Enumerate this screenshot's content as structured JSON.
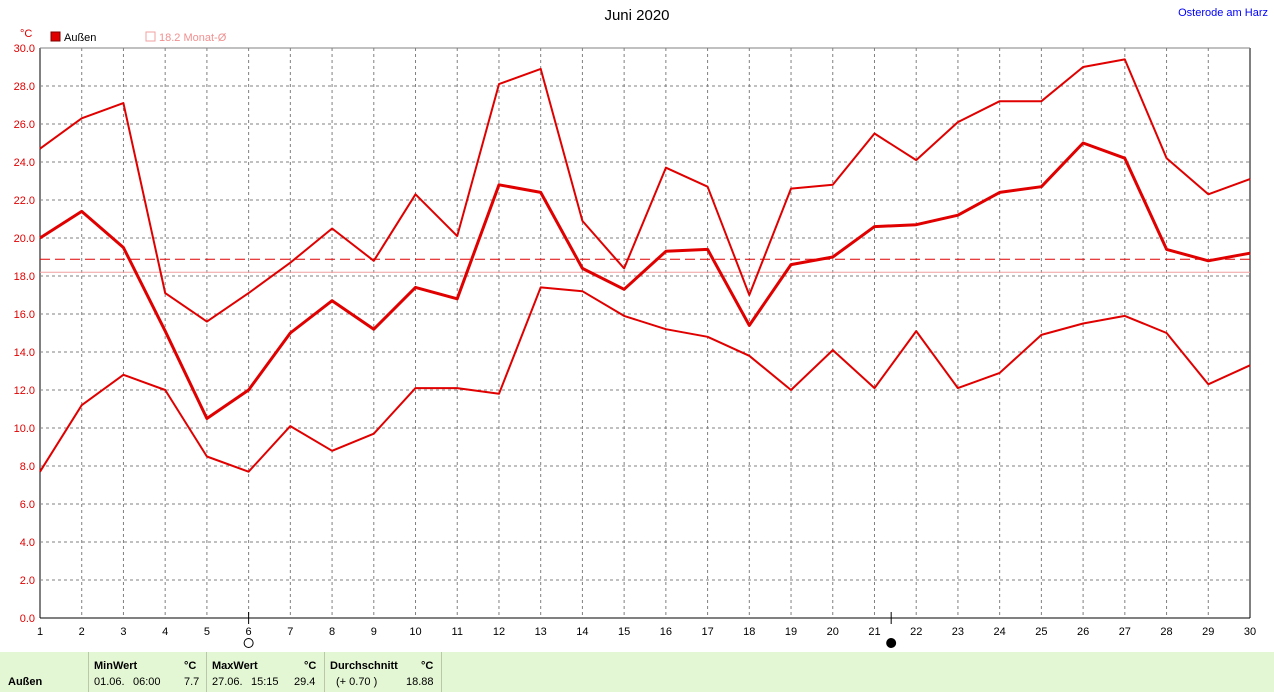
{
  "header": {
    "title": "Juni 2020",
    "location": "Osterode am Harz",
    "unit": "°C"
  },
  "legend": {
    "series_label": "Außen",
    "avg_label": "18.2 Monat-Ø"
  },
  "colors": {
    "series": "#e00000",
    "avg_line": "#e00000",
    "month_avg_line": "#f0a0a0",
    "footer_bg": "#e4f7d4",
    "grid": "#808080"
  },
  "chart_data": {
    "type": "line",
    "title": "Juni 2020",
    "ylabel": "°C",
    "xlabel": "",
    "x": [
      1,
      2,
      3,
      4,
      5,
      6,
      7,
      8,
      9,
      10,
      11,
      12,
      13,
      14,
      15,
      16,
      17,
      18,
      19,
      20,
      21,
      22,
      23,
      24,
      25,
      26,
      27,
      28,
      29,
      30
    ],
    "ylim": [
      0,
      30
    ],
    "y_ticks": [
      "0.0",
      "2.0",
      "4.0",
      "6.0",
      "8.0",
      "10.0",
      "12.0",
      "14.0",
      "16.0",
      "18.0",
      "20.0",
      "22.0",
      "24.0",
      "26.0",
      "28.0",
      "30.0"
    ],
    "x_ticks": [
      "1",
      "2",
      "3",
      "4",
      "5",
      "6",
      "7",
      "8",
      "9",
      "10",
      "11",
      "12",
      "13",
      "14",
      "15",
      "16",
      "17",
      "18",
      "19",
      "20",
      "21",
      "22",
      "23",
      "24",
      "25",
      "26",
      "27",
      "28",
      "29",
      "30"
    ],
    "grid": true,
    "legend_position": "top-left",
    "series": [
      {
        "name": "Außen",
        "role": "max",
        "values": [
          24.7,
          26.3,
          27.1,
          17.1,
          15.6,
          17.1,
          18.7,
          20.5,
          18.8,
          22.3,
          20.1,
          28.1,
          28.9,
          20.9,
          18.4,
          23.7,
          22.7,
          17.0,
          22.6,
          22.8,
          25.5,
          24.1,
          26.1,
          27.2,
          27.2,
          29.0,
          29.4,
          24.2,
          22.3,
          23.1
        ]
      },
      {
        "name": "Außen",
        "role": "mean",
        "values": [
          20.0,
          21.4,
          19.5,
          15.1,
          10.5,
          12.0,
          15.0,
          16.7,
          15.2,
          17.4,
          16.8,
          22.8,
          22.4,
          18.4,
          17.3,
          19.3,
          19.4,
          15.4,
          18.6,
          19.0,
          20.6,
          20.7,
          21.2,
          22.4,
          22.7,
          25.0,
          24.2,
          19.4,
          18.8,
          19.2
        ]
      },
      {
        "name": "Außen",
        "role": "min",
        "values": [
          7.7,
          11.2,
          12.8,
          12.0,
          8.5,
          7.7,
          10.1,
          8.8,
          9.7,
          12.1,
          12.1,
          11.8,
          17.4,
          17.2,
          15.9,
          15.2,
          14.8,
          13.8,
          12.0,
          14.1,
          12.1,
          15.1,
          12.1,
          12.9,
          14.9,
          15.5,
          15.9,
          15.0,
          12.3,
          13.3
        ]
      }
    ],
    "reference_lines": [
      {
        "label": "Durchschnitt",
        "value": 18.88,
        "style": "dashed"
      },
      {
        "label": "18.2 Monat-Ø",
        "value": 18.2,
        "style": "solid"
      }
    ],
    "moon_markers": [
      {
        "day": 6,
        "phase": "full-moon"
      },
      {
        "day": 21.4,
        "phase": "new-moon"
      }
    ]
  },
  "footer": {
    "row_label": "Außen",
    "min": {
      "header": "MinWert",
      "unit": "°C",
      "date": "01.06.",
      "time": "06:00",
      "value": "7.7"
    },
    "max": {
      "header": "MaxWert",
      "unit": "°C",
      "date": "27.06.",
      "time": "15:15",
      "value": "29.4"
    },
    "avg": {
      "header": "Durchschnitt",
      "unit": "°C",
      "delta": "(+ 0.70 )",
      "value": "18.88"
    }
  }
}
